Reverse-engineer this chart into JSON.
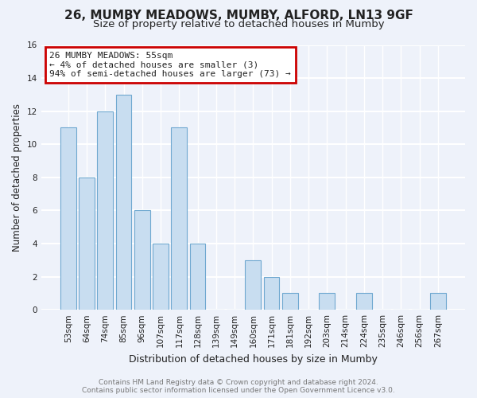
{
  "title1": "26, MUMBY MEADOWS, MUMBY, ALFORD, LN13 9GF",
  "title2": "Size of property relative to detached houses in Mumby",
  "xlabel": "Distribution of detached houses by size in Mumby",
  "ylabel": "Number of detached properties",
  "bar_labels": [
    "53sqm",
    "64sqm",
    "74sqm",
    "85sqm",
    "96sqm",
    "107sqm",
    "117sqm",
    "128sqm",
    "139sqm",
    "149sqm",
    "160sqm",
    "171sqm",
    "181sqm",
    "192sqm",
    "203sqm",
    "214sqm",
    "224sqm",
    "235sqm",
    "246sqm",
    "256sqm",
    "267sqm"
  ],
  "bar_values": [
    11,
    8,
    12,
    13,
    6,
    4,
    11,
    4,
    0,
    0,
    3,
    2,
    1,
    0,
    1,
    0,
    1,
    0,
    0,
    0,
    1
  ],
  "bar_color": "#c8ddf0",
  "bar_edge_color": "#6fa8d0",
  "annotation_line1": "26 MUMBY MEADOWS: 55sqm",
  "annotation_line2": "← 4% of detached houses are smaller (3)",
  "annotation_line3": "94% of semi-detached houses are larger (73) →",
  "annotation_box_edge_color": "#cc0000",
  "annotation_box_bg": "#ffffff",
  "ylim": [
    0,
    16
  ],
  "yticks": [
    0,
    2,
    4,
    6,
    8,
    10,
    12,
    14,
    16
  ],
  "footnote1": "Contains HM Land Registry data © Crown copyright and database right 2024.",
  "footnote2": "Contains public sector information licensed under the Open Government Licence v3.0.",
  "bg_color": "#eef2fa",
  "plot_bg_color": "#eef2fa",
  "grid_color": "#ffffff",
  "title1_fontsize": 11,
  "title2_fontsize": 9.5,
  "xlabel_fontsize": 9,
  "ylabel_fontsize": 8.5,
  "tick_fontsize": 7.5,
  "annotation_fontsize": 8,
  "footnote_fontsize": 6.5
}
